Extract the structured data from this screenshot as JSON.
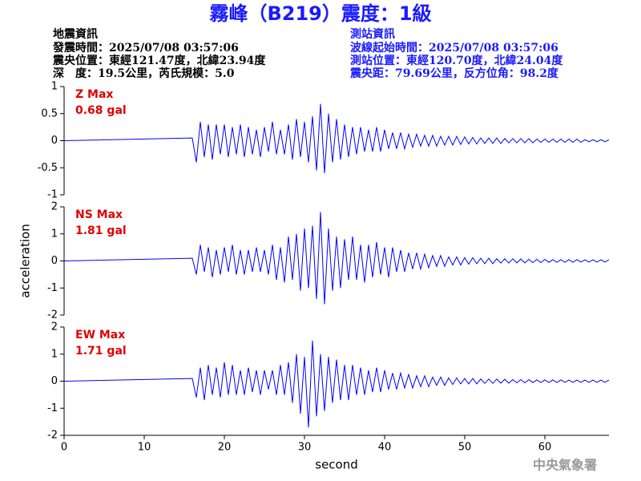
{
  "header": {
    "title": "霧峰（B219）震度：1級",
    "left": [
      "地震資訊",
      "發震時間：2025/07/08 03:57:06",
      "震央位置：東經121.47度，北緯23.94度",
      "深　度：19.5公里，芮氏規模：5.0"
    ],
    "right": [
      "測站資訊",
      "波線起始時間：2025/07/08 03:57:06",
      "測站位置：東經120.70度，北緯24.04度",
      "震央距：79.69公里，反方位角：98.2度"
    ]
  },
  "footer": "中央氣象署",
  "chart_data": [
    {
      "type": "line",
      "ylim": [
        -1,
        1
      ],
      "yticks": [
        1,
        0.5,
        0,
        -0.5,
        -1
      ],
      "xlim": [
        0,
        68
      ],
      "annotation": "0.68 gal",
      "label_color": "#e00000",
      "x": [
        0,
        16,
        16.5,
        17,
        17.5,
        18,
        18.5,
        19,
        19.5,
        20,
        20.5,
        21,
        21.5,
        22,
        22.5,
        23,
        23.5,
        24,
        24.5,
        25,
        25.5,
        26,
        26.5,
        27,
        27.5,
        28,
        28.5,
        29,
        29.5,
        30,
        30.5,
        31,
        31.5,
        32,
        32.5,
        33,
        33.5,
        34,
        34.5,
        35,
        35.5,
        36,
        36.5,
        37,
        37.5,
        38,
        38.5,
        39,
        39.5,
        40,
        40.5,
        41,
        41.5,
        42,
        42.5,
        43,
        43.5,
        44,
        44.5,
        45,
        45.5,
        46,
        46.5,
        47,
        47.5,
        48,
        48.5,
        49,
        49.5,
        50,
        50.5,
        51,
        51.5,
        52,
        52.5,
        53,
        53.5,
        54,
        54.5,
        55,
        55.5,
        56,
        56.5,
        57,
        57.5,
        58,
        58.5,
        59,
        59.5,
        60,
        60.5,
        61,
        61.5,
        62,
        62.5,
        63,
        63.5,
        64,
        64.5,
        65,
        65.5,
        66,
        66.5,
        67,
        67.5,
        68
      ],
      "series": [
        {
          "name": "Z Max",
          "color": "#0000ff",
          "values": [
            0,
            0.05,
            -0.4,
            0.35,
            -0.3,
            0.3,
            -0.35,
            0.3,
            -0.25,
            0.3,
            -0.3,
            0.25,
            -0.25,
            0.3,
            -0.3,
            0.25,
            -0.25,
            0.2,
            -0.3,
            0.25,
            -0.2,
            0.35,
            -0.25,
            0.2,
            -0.25,
            0.3,
            -0.35,
            0.4,
            -0.3,
            0.35,
            -0.4,
            0.45,
            -0.55,
            0.68,
            -0.6,
            0.5,
            -0.4,
            0.4,
            -0.35,
            0.3,
            -0.3,
            0.25,
            -0.25,
            0.25,
            -0.2,
            0.2,
            -0.2,
            0.25,
            -0.2,
            0.2,
            -0.15,
            0.15,
            -0.15,
            0.15,
            -0.15,
            0.12,
            -0.12,
            0.12,
            -0.1,
            0.1,
            -0.1,
            0.1,
            -0.1,
            0.08,
            -0.08,
            0.08,
            -0.08,
            0.08,
            -0.07,
            0.07,
            -0.06,
            0.06,
            -0.06,
            0.05,
            -0.05,
            0.05,
            -0.05,
            0.05,
            -0.05,
            0.04,
            -0.04,
            0.04,
            -0.04,
            0.04,
            -0.04,
            0.04,
            -0.04,
            0.03,
            -0.03,
            0.03,
            -0.03,
            0.03,
            -0.03,
            0.03,
            -0.03,
            0.03,
            -0.03,
            0.03,
            -0.03,
            0.02,
            -0.02,
            0.02,
            -0.02,
            0.02,
            -0.02,
            0.02
          ]
        }
      ]
    },
    {
      "type": "line",
      "ylim": [
        -2,
        2
      ],
      "yticks": [
        2,
        1,
        0,
        -1,
        -2
      ],
      "xlim": [
        0,
        68
      ],
      "annotation": "1.81 gal",
      "label_color": "#e00000",
      "ylabel": "acceleration",
      "x": [
        0,
        16,
        16.5,
        17,
        17.5,
        18,
        18.5,
        19,
        19.5,
        20,
        20.5,
        21,
        21.5,
        22,
        22.5,
        23,
        23.5,
        24,
        24.5,
        25,
        25.5,
        26,
        26.5,
        27,
        27.5,
        28,
        28.5,
        29,
        29.5,
        30,
        30.5,
        31,
        31.5,
        32,
        32.5,
        33,
        33.5,
        34,
        34.5,
        35,
        35.5,
        36,
        36.5,
        37,
        37.5,
        38,
        38.5,
        39,
        39.5,
        40,
        40.5,
        41,
        41.5,
        42,
        42.5,
        43,
        43.5,
        44,
        44.5,
        45,
        45.5,
        46,
        46.5,
        47,
        47.5,
        48,
        48.5,
        49,
        49.5,
        50,
        50.5,
        51,
        51.5,
        52,
        52.5,
        53,
        53.5,
        54,
        54.5,
        55,
        55.5,
        56,
        56.5,
        57,
        57.5,
        58,
        58.5,
        59,
        59.5,
        60,
        60.5,
        61,
        61.5,
        62,
        62.5,
        63,
        63.5,
        64,
        64.5,
        65,
        65.5,
        66,
        66.5,
        67,
        67.5,
        68
      ],
      "series": [
        {
          "name": "NS Max",
          "color": "#0000ff",
          "values": [
            0,
            0.1,
            -0.5,
            0.6,
            -0.4,
            0.5,
            -0.6,
            0.4,
            -0.5,
            0.5,
            -0.4,
            0.6,
            -0.5,
            0.4,
            -0.5,
            0.4,
            -0.4,
            0.5,
            -0.4,
            0.4,
            -0.5,
            0.6,
            -0.7,
            0.5,
            -0.8,
            0.9,
            -0.7,
            1.0,
            -1.1,
            1.2,
            -1.0,
            1.3,
            -1.4,
            1.81,
            -1.6,
            1.2,
            -1.1,
            0.9,
            -1.0,
            0.8,
            -0.7,
            0.9,
            -0.7,
            0.6,
            -0.8,
            0.6,
            -0.6,
            0.7,
            -0.5,
            0.5,
            -0.6,
            0.5,
            -0.4,
            0.4,
            -0.4,
            0.3,
            -0.3,
            0.3,
            -0.3,
            0.25,
            -0.25,
            0.2,
            -0.2,
            0.2,
            -0.2,
            0.15,
            -0.15,
            0.15,
            -0.15,
            0.12,
            -0.12,
            0.12,
            -0.1,
            0.1,
            -0.1,
            0.1,
            -0.1,
            0.08,
            -0.08,
            0.08,
            -0.08,
            0.08,
            -0.07,
            0.07,
            -0.07,
            0.06,
            -0.06,
            0.06,
            -0.06,
            0.06,
            -0.05,
            0.05,
            -0.05,
            0.05,
            -0.05,
            0.05,
            -0.05,
            0.05,
            -0.04,
            0.04,
            -0.04,
            0.04,
            -0.04,
            0.04,
            -0.04,
            0.04
          ]
        }
      ]
    },
    {
      "type": "line",
      "ylim": [
        -2,
        2
      ],
      "yticks": [
        2,
        1,
        0,
        -1,
        -2
      ],
      "xlim": [
        0,
        68
      ],
      "xticks": [
        0,
        10,
        20,
        30,
        40,
        50,
        60
      ],
      "xlabel": "second",
      "annotation": "1.71 gal",
      "label_color": "#e00000",
      "x": [
        0,
        16,
        16.5,
        17,
        17.5,
        18,
        18.5,
        19,
        19.5,
        20,
        20.5,
        21,
        21.5,
        22,
        22.5,
        23,
        23.5,
        24,
        24.5,
        25,
        25.5,
        26,
        26.5,
        27,
        27.5,
        28,
        28.5,
        29,
        29.5,
        30,
        30.5,
        31,
        31.5,
        32,
        32.5,
        33,
        33.5,
        34,
        34.5,
        35,
        35.5,
        36,
        36.5,
        37,
        37.5,
        38,
        38.5,
        39,
        39.5,
        40,
        40.5,
        41,
        41.5,
        42,
        42.5,
        43,
        43.5,
        44,
        44.5,
        45,
        45.5,
        46,
        46.5,
        47,
        47.5,
        48,
        48.5,
        49,
        49.5,
        50,
        50.5,
        51,
        51.5,
        52,
        52.5,
        53,
        53.5,
        54,
        54.5,
        55,
        55.5,
        56,
        56.5,
        57,
        57.5,
        58,
        58.5,
        59,
        59.5,
        60,
        60.5,
        61,
        61.5,
        62,
        62.5,
        63,
        63.5,
        64,
        64.5,
        65,
        65.5,
        66,
        66.5,
        67,
        67.5,
        68
      ],
      "series": [
        {
          "name": "EW Max",
          "color": "#0000ff",
          "values": [
            0,
            0.1,
            -0.6,
            0.5,
            -0.7,
            0.6,
            -0.5,
            0.5,
            -0.6,
            0.7,
            -0.5,
            0.6,
            -0.5,
            0.4,
            -0.5,
            0.5,
            -0.4,
            0.4,
            -0.5,
            0.4,
            -0.3,
            0.4,
            -0.5,
            0.6,
            -0.5,
            0.7,
            -0.8,
            1.0,
            -1.2,
            0.9,
            -1.71,
            1.5,
            -1.3,
            1.0,
            -1.1,
            0.9,
            -0.8,
            0.8,
            -0.7,
            0.6,
            -0.7,
            0.6,
            -0.5,
            0.5,
            -0.5,
            0.4,
            -0.4,
            0.5,
            -0.4,
            0.4,
            -0.3,
            0.3,
            -0.3,
            0.3,
            -0.25,
            0.25,
            -0.25,
            0.2,
            -0.2,
            0.2,
            -0.2,
            0.15,
            -0.15,
            0.15,
            -0.15,
            0.12,
            -0.12,
            0.12,
            -0.1,
            0.1,
            -0.1,
            0.1,
            -0.1,
            0.08,
            -0.08,
            0.08,
            -0.08,
            0.08,
            -0.07,
            0.07,
            -0.07,
            0.06,
            -0.06,
            0.06,
            -0.06,
            0.06,
            -0.05,
            0.05,
            -0.05,
            0.05,
            -0.05,
            0.05,
            -0.05,
            0.05,
            -0.04,
            0.04,
            -0.04,
            0.04,
            -0.04,
            0.04,
            -0.04,
            0.04,
            -0.04,
            0.04,
            -0.04,
            0.04
          ]
        }
      ]
    }
  ]
}
